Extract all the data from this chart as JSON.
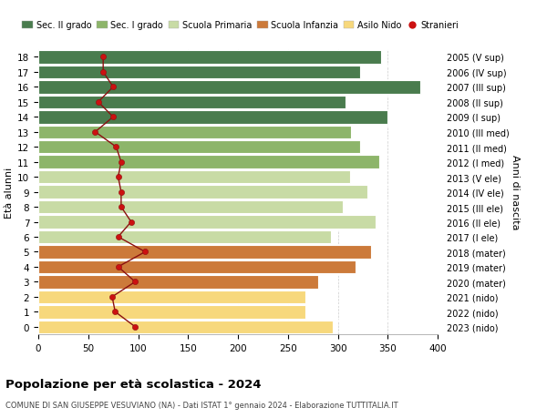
{
  "ages": [
    0,
    1,
    2,
    3,
    4,
    5,
    6,
    7,
    8,
    9,
    10,
    11,
    12,
    13,
    14,
    15,
    16,
    17,
    18
  ],
  "values": [
    295,
    268,
    268,
    280,
    318,
    333,
    293,
    338,
    305,
    330,
    312,
    342,
    322,
    313,
    350,
    308,
    383,
    322,
    343
  ],
  "colors": [
    "#f7d87c",
    "#f7d87c",
    "#f7d87c",
    "#cc7a3a",
    "#cc7a3a",
    "#cc7a3a",
    "#c8dba5",
    "#c8dba5",
    "#c8dba5",
    "#c8dba5",
    "#c8dba5",
    "#8db56a",
    "#8db56a",
    "#8db56a",
    "#4a7c4e",
    "#4a7c4e",
    "#4a7c4e",
    "#4a7c4e",
    "#4a7c4e"
  ],
  "right_labels": [
    "2023 (nido)",
    "2022 (nido)",
    "2021 (nido)",
    "2020 (mater)",
    "2019 (mater)",
    "2018 (mater)",
    "2017 (I ele)",
    "2016 (II ele)",
    "2015 (III ele)",
    "2014 (IV ele)",
    "2013 (V ele)",
    "2012 (I med)",
    "2011 (II med)",
    "2010 (III med)",
    "2009 (I sup)",
    "2008 (II sup)",
    "2007 (III sup)",
    "2006 (IV sup)",
    "2005 (V sup)"
  ],
  "stranieri": [
    97,
    77,
    74,
    97,
    80,
    107,
    80,
    93,
    83,
    83,
    80,
    83,
    78,
    57,
    75,
    60,
    75,
    65,
    65
  ],
  "legend_labels": [
    "Sec. II grado",
    "Sec. I grado",
    "Scuola Primaria",
    "Scuola Infanzia",
    "Asilo Nido",
    "Stranieri"
  ],
  "legend_colors": [
    "#4a7c4e",
    "#8db56a",
    "#c8dba5",
    "#cc7a3a",
    "#f7d87c",
    "#cc1111"
  ],
  "title": "Popolazione per età scolastica - 2024",
  "subtitle": "COMUNE DI SAN GIUSEPPE VESUVIANO (NA) - Dati ISTAT 1° gennaio 2024 - Elaborazione TUTTITALIA.IT",
  "ylabel": "Età alunni",
  "ylabel_right": "Anni di nascita",
  "xlim": [
    0,
    400
  ],
  "bg_color": "#ffffff"
}
